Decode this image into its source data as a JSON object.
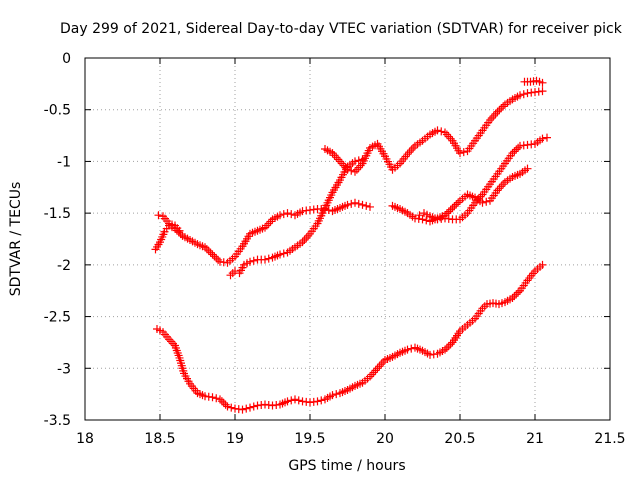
{
  "chart_data": {
    "type": "scatter",
    "title": "Day 299 of 2021, Sidereal Day-to-day VTEC variation (SDTVAR) for receiver pick",
    "xlabel": "GPS time / hours",
    "ylabel": "SDTVAR / TECUs",
    "xlim": [
      18,
      21.5
    ],
    "ylim": [
      -3.5,
      0
    ],
    "xticks": [
      "18",
      "18.5",
      "19",
      "19.5",
      "20",
      "20.5",
      "21",
      "21.5"
    ],
    "yticks": [
      "0",
      "-0.5",
      "-1",
      "-1.5",
      "-2",
      "-2.5",
      "-3",
      "-3.5"
    ],
    "grid": true,
    "marker": "+",
    "color": "#ff0000",
    "series": [
      {
        "points": [
          [
            18.48,
            -2.62
          ],
          [
            18.52,
            -2.65
          ],
          [
            18.56,
            -2.72
          ],
          [
            18.6,
            -2.78
          ],
          [
            18.63,
            -2.9
          ],
          [
            18.66,
            -3.05
          ],
          [
            18.7,
            -3.15
          ],
          [
            18.75,
            -3.24
          ],
          [
            18.8,
            -3.27
          ],
          [
            18.85,
            -3.28
          ],
          [
            18.9,
            -3.3
          ],
          [
            18.95,
            -3.37
          ],
          [
            19.0,
            -3.39
          ],
          [
            19.05,
            -3.4
          ],
          [
            19.1,
            -3.38
          ],
          [
            19.15,
            -3.36
          ],
          [
            19.2,
            -3.35
          ],
          [
            19.25,
            -3.36
          ],
          [
            19.3,
            -3.35
          ],
          [
            19.35,
            -3.32
          ],
          [
            19.4,
            -3.3
          ],
          [
            19.45,
            -3.32
          ],
          [
            19.5,
            -3.33
          ],
          [
            19.55,
            -3.32
          ],
          [
            19.6,
            -3.3
          ],
          [
            19.65,
            -3.26
          ],
          [
            19.7,
            -3.24
          ],
          [
            19.75,
            -3.21
          ],
          [
            19.8,
            -3.17
          ],
          [
            19.85,
            -3.14
          ],
          [
            19.9,
            -3.08
          ],
          [
            19.95,
            -3.0
          ],
          [
            20.0,
            -2.92
          ],
          [
            20.05,
            -2.89
          ],
          [
            20.1,
            -2.85
          ],
          [
            20.15,
            -2.82
          ],
          [
            20.2,
            -2.8
          ],
          [
            20.25,
            -2.83
          ],
          [
            20.3,
            -2.87
          ],
          [
            20.35,
            -2.86
          ],
          [
            20.4,
            -2.82
          ],
          [
            20.45,
            -2.75
          ],
          [
            20.5,
            -2.64
          ],
          [
            20.55,
            -2.58
          ],
          [
            20.6,
            -2.52
          ],
          [
            20.65,
            -2.42
          ],
          [
            20.68,
            -2.38
          ],
          [
            20.72,
            -2.37
          ],
          [
            20.76,
            -2.38
          ],
          [
            20.8,
            -2.36
          ],
          [
            20.85,
            -2.32
          ],
          [
            20.9,
            -2.25
          ],
          [
            20.95,
            -2.15
          ],
          [
            21.0,
            -2.06
          ],
          [
            21.05,
            -2.0
          ]
        ]
      },
      {
        "points": [
          [
            18.47,
            -1.85
          ],
          [
            18.5,
            -1.78
          ],
          [
            18.53,
            -1.68
          ],
          [
            18.56,
            -1.62
          ],
          [
            18.6,
            -1.65
          ],
          [
            18.65,
            -1.72
          ],
          [
            18.7,
            -1.76
          ],
          [
            18.75,
            -1.8
          ],
          [
            18.8,
            -1.83
          ],
          [
            18.85,
            -1.9
          ],
          [
            18.9,
            -1.97
          ],
          [
            18.95,
            -1.98
          ],
          [
            19.0,
            -1.92
          ],
          [
            19.05,
            -1.82
          ],
          [
            19.1,
            -1.7
          ],
          [
            19.15,
            -1.67
          ],
          [
            19.2,
            -1.64
          ],
          [
            19.25,
            -1.56
          ],
          [
            19.3,
            -1.52
          ],
          [
            19.35,
            -1.5
          ],
          [
            19.4,
            -1.52
          ],
          [
            19.45,
            -1.48
          ],
          [
            19.5,
            -1.47
          ],
          [
            19.55,
            -1.46
          ],
          [
            19.6,
            -1.46
          ],
          [
            19.65,
            -1.48
          ],
          [
            19.7,
            -1.45
          ],
          [
            19.75,
            -1.42
          ],
          [
            19.8,
            -1.4
          ],
          [
            19.85,
            -1.42
          ],
          [
            19.9,
            -1.44
          ]
        ]
      },
      {
        "points": [
          [
            18.49,
            -1.52
          ],
          [
            18.52,
            -1.53
          ],
          [
            18.56,
            -1.6
          ],
          [
            18.6,
            -1.62
          ],
          [
            18.63,
            -1.67
          ]
        ]
      },
      {
        "points": [
          [
            18.97,
            -2.1
          ],
          [
            19.0,
            -2.06
          ],
          [
            19.03,
            -2.08
          ],
          [
            19.06,
            -2.0
          ],
          [
            19.1,
            -1.97
          ],
          [
            19.15,
            -1.95
          ],
          [
            19.2,
            -1.95
          ],
          [
            19.25,
            -1.93
          ],
          [
            19.3,
            -1.9
          ],
          [
            19.35,
            -1.88
          ],
          [
            19.4,
            -1.83
          ],
          [
            19.45,
            -1.78
          ],
          [
            19.5,
            -1.7
          ],
          [
            19.55,
            -1.6
          ],
          [
            19.6,
            -1.45
          ],
          [
            19.65,
            -1.3
          ],
          [
            19.7,
            -1.18
          ],
          [
            19.75,
            -1.05
          ],
          [
            19.8,
            -1.0
          ],
          [
            19.85,
            -0.98
          ]
        ]
      },
      {
        "points": [
          [
            19.6,
            -0.88
          ],
          [
            19.65,
            -0.92
          ],
          [
            19.7,
            -1.0
          ],
          [
            19.75,
            -1.08
          ],
          [
            19.8,
            -1.1
          ],
          [
            19.85,
            -1.02
          ],
          [
            19.9,
            -0.87
          ],
          [
            19.95,
            -0.83
          ],
          [
            20.0,
            -0.95
          ],
          [
            20.05,
            -1.08
          ],
          [
            20.1,
            -1.02
          ],
          [
            20.15,
            -0.93
          ],
          [
            20.2,
            -0.85
          ],
          [
            20.25,
            -0.8
          ],
          [
            20.3,
            -0.74
          ],
          [
            20.35,
            -0.7
          ],
          [
            20.4,
            -0.72
          ],
          [
            20.45,
            -0.8
          ],
          [
            20.5,
            -0.92
          ],
          [
            20.55,
            -0.9
          ],
          [
            20.6,
            -0.8
          ],
          [
            20.65,
            -0.7
          ],
          [
            20.7,
            -0.6
          ],
          [
            20.75,
            -0.52
          ],
          [
            20.8,
            -0.45
          ],
          [
            20.85,
            -0.4
          ],
          [
            20.9,
            -0.36
          ],
          [
            20.95,
            -0.34
          ],
          [
            21.0,
            -0.33
          ],
          [
            21.05,
            -0.32
          ]
        ]
      },
      {
        "points": [
          [
            20.93,
            -0.23
          ],
          [
            20.97,
            -0.23
          ],
          [
            21.01,
            -0.22
          ],
          [
            21.05,
            -0.24
          ]
        ]
      },
      {
        "points": [
          [
            20.05,
            -1.43
          ],
          [
            20.1,
            -1.46
          ],
          [
            20.15,
            -1.5
          ],
          [
            20.2,
            -1.55
          ],
          [
            20.25,
            -1.56
          ],
          [
            20.3,
            -1.58
          ],
          [
            20.35,
            -1.55
          ],
          [
            20.4,
            -1.52
          ],
          [
            20.45,
            -1.45
          ],
          [
            20.5,
            -1.38
          ],
          [
            20.55,
            -1.32
          ],
          [
            20.6,
            -1.35
          ],
          [
            20.65,
            -1.4
          ],
          [
            20.7,
            -1.38
          ],
          [
            20.75,
            -1.28
          ],
          [
            20.8,
            -1.2
          ],
          [
            20.85,
            -1.15
          ],
          [
            20.9,
            -1.12
          ],
          [
            20.95,
            -1.07
          ]
        ]
      },
      {
        "points": [
          [
            20.23,
            -1.52
          ],
          [
            20.26,
            -1.5
          ],
          [
            20.3,
            -1.53
          ],
          [
            20.35,
            -1.56
          ],
          [
            20.4,
            -1.55
          ],
          [
            20.45,
            -1.56
          ],
          [
            20.5,
            -1.56
          ],
          [
            20.55,
            -1.5
          ],
          [
            20.6,
            -1.4
          ],
          [
            20.65,
            -1.32
          ],
          [
            20.7,
            -1.22
          ],
          [
            20.75,
            -1.12
          ],
          [
            20.8,
            -1.02
          ],
          [
            20.85,
            -0.92
          ],
          [
            20.9,
            -0.85
          ],
          [
            20.95,
            -0.84
          ],
          [
            21.0,
            -0.83
          ],
          [
            21.05,
            -0.78
          ],
          [
            21.08,
            -0.77
          ]
        ]
      }
    ]
  }
}
